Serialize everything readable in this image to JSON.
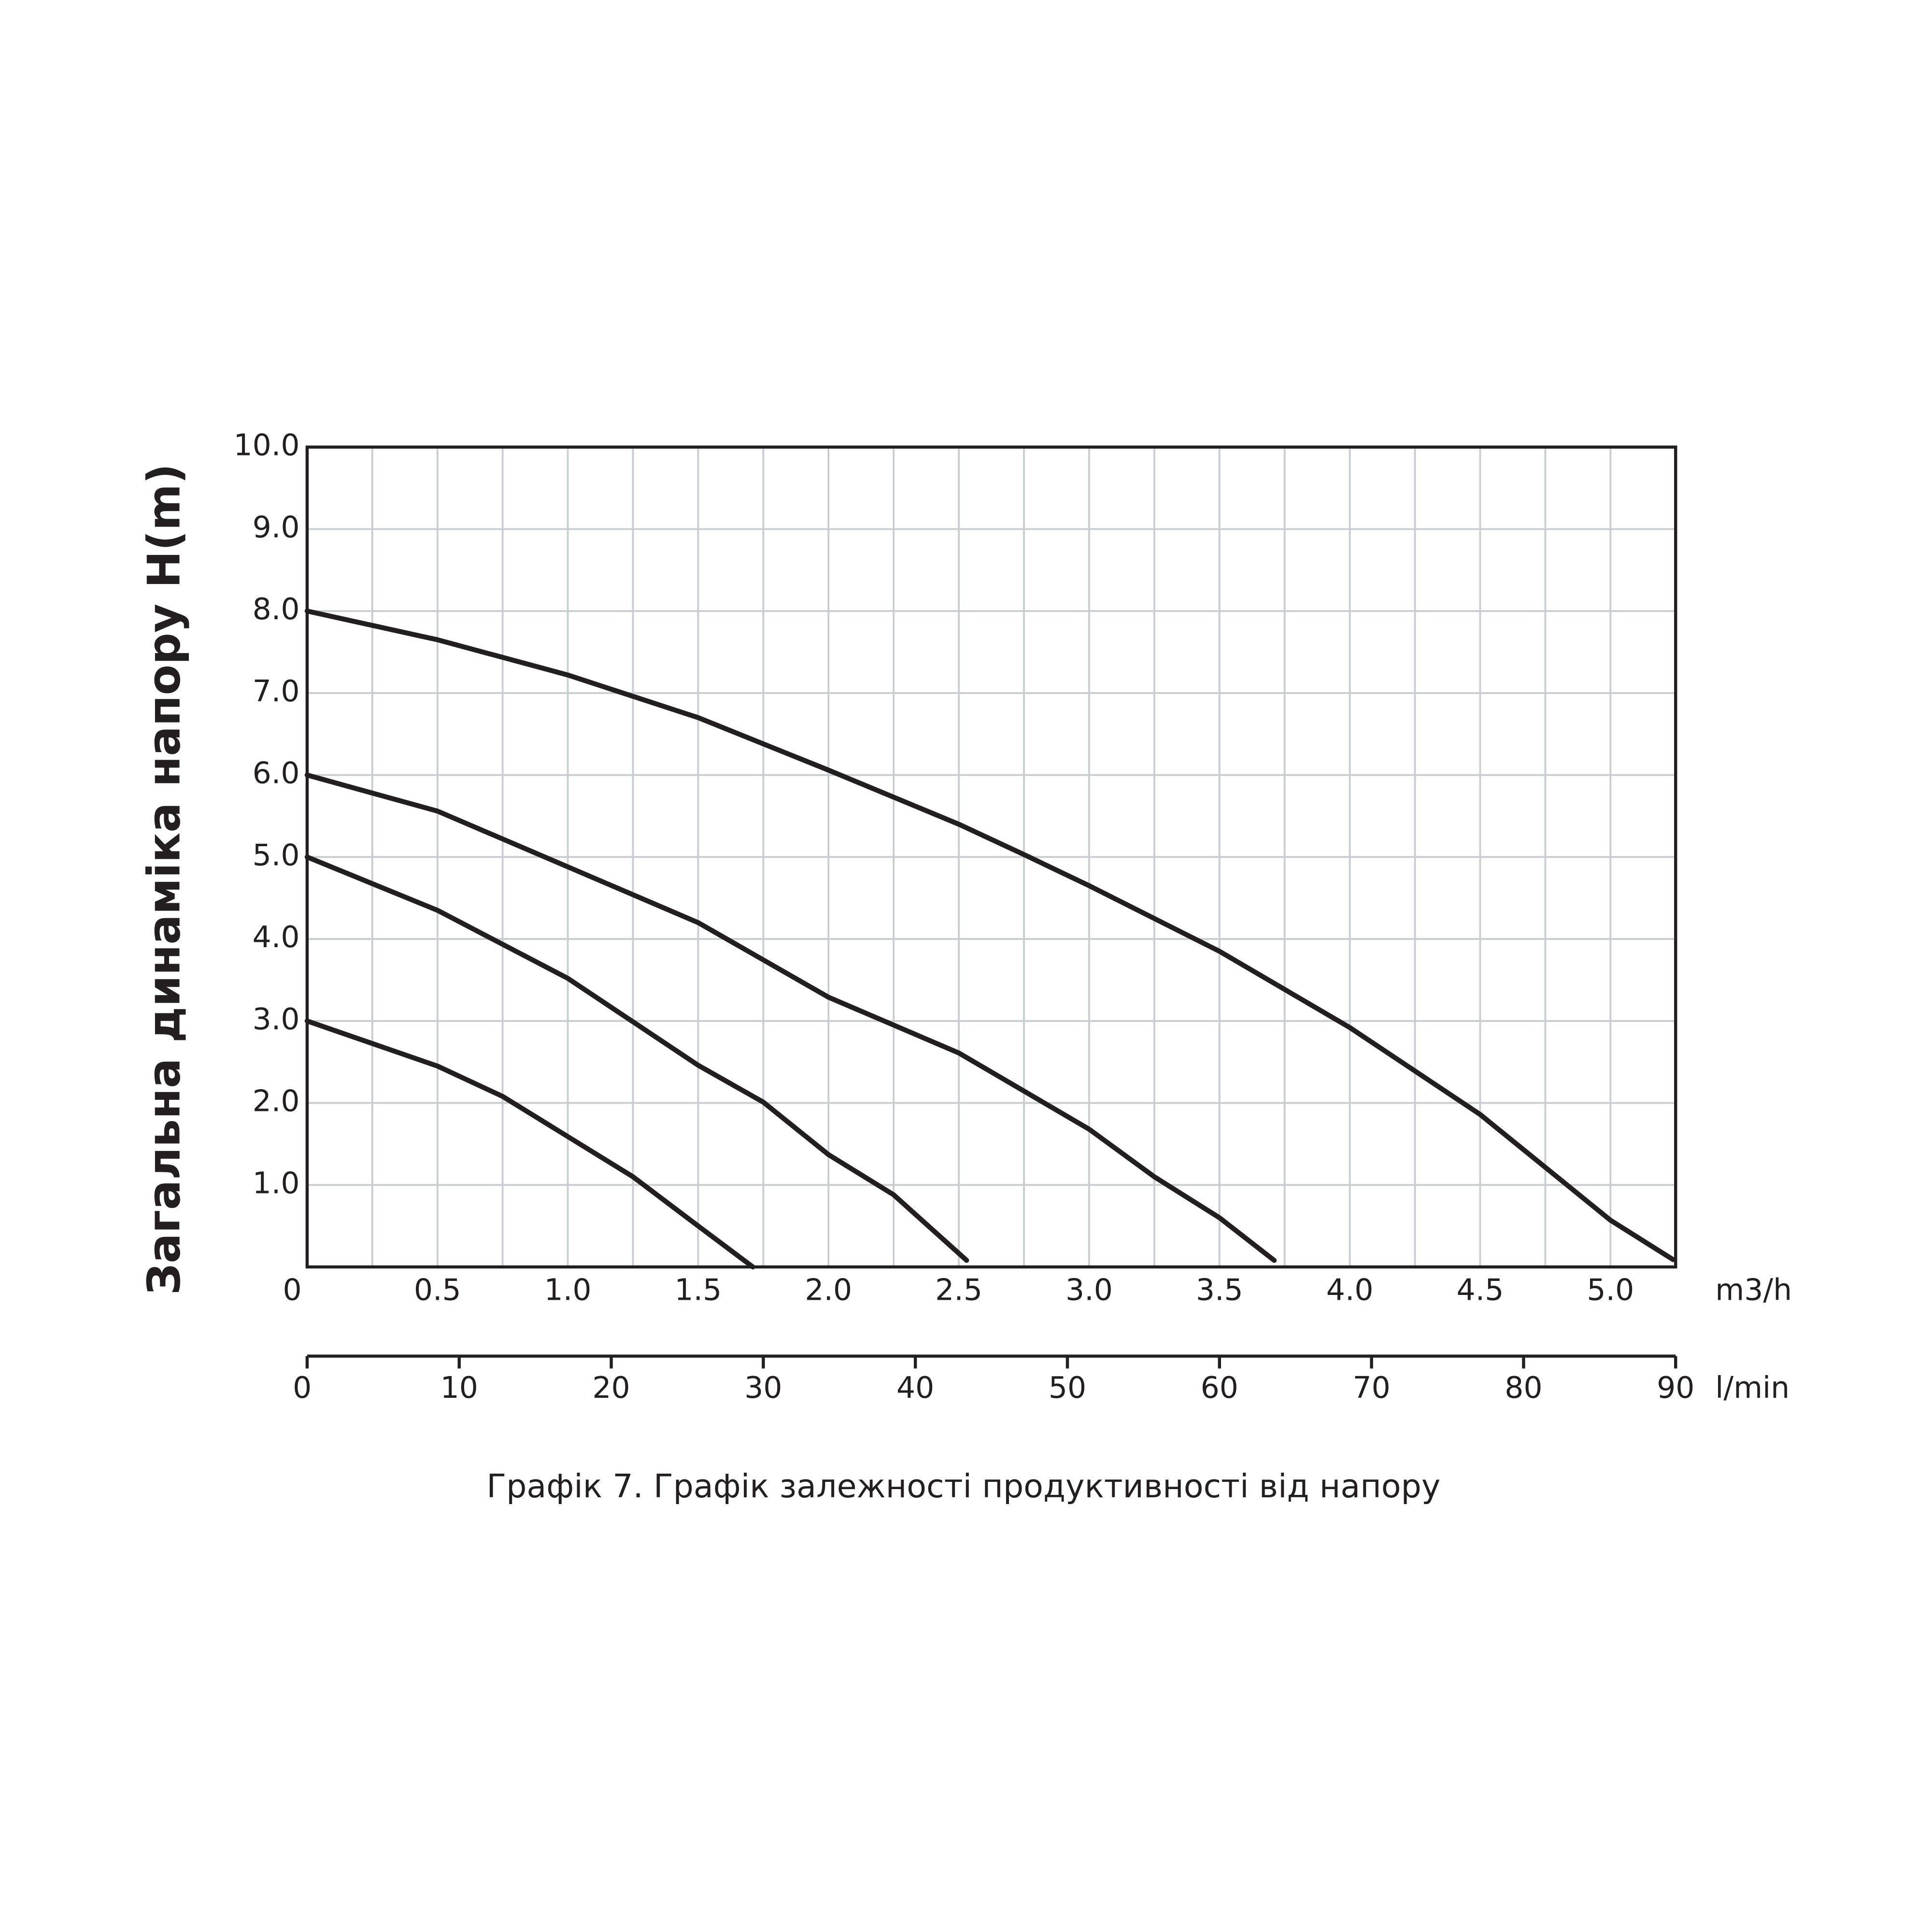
{
  "chart_data": {
    "type": "line",
    "ylabel": "Загальна динаміка напору H(m)",
    "xlabel": "m3/h",
    "x2label": "l/min",
    "caption": "Графік 7. Графік залежності продуктивності від напору",
    "color": "#231f20",
    "grid": true,
    "xlim": [
      0,
      5.25
    ],
    "ylim": [
      0,
      10
    ],
    "x2lim": [
      0,
      90
    ],
    "xticks": [
      0,
      0.5,
      {
        "value": 1,
        "label": "1.0"
      },
      1.5,
      {
        "value": 2,
        "label": "2.0"
      },
      2.5,
      {
        "value": 3,
        "label": "3.0"
      },
      3.5,
      {
        "value": 4,
        "label": "4.0"
      },
      4.5,
      {
        "value": 5,
        "label": "5.0"
      }
    ],
    "xgrid": [
      0.25,
      0.75,
      1.25,
      1.75,
      2.25,
      2.75,
      3.25,
      3.75,
      4.25,
      4.75,
      5.25
    ],
    "x2ticks": [
      0,
      10,
      20,
      30,
      40,
      50,
      60,
      70,
      80,
      90
    ],
    "yticks": [
      {
        "value": 1,
        "label": "1.0"
      },
      {
        "value": 2,
        "label": "2.0"
      },
      {
        "value": 3,
        "label": "3.0"
      },
      {
        "value": 4,
        "label": "4.0"
      },
      {
        "value": 5,
        "label": "5.0"
      },
      {
        "value": 6,
        "label": "6.0"
      },
      {
        "value": 7,
        "label": "7.0"
      },
      {
        "value": 8,
        "label": "8.0"
      },
      {
        "value": 9,
        "label": "9.0"
      },
      {
        "value": 10,
        "label": "10.0"
      }
    ],
    "series": [
      {
        "x": [
          0,
          0.5,
          1,
          1.5,
          2,
          2.5,
          2.75,
          3,
          3.5,
          4,
          4.5,
          5,
          5.24
        ],
        "values": [
          8,
          7.65,
          7.22,
          6.7,
          6.06,
          5.4,
          5.03,
          4.65,
          3.85,
          2.92,
          1.86,
          0.57,
          0.09
        ]
      },
      {
        "x": [
          0,
          0.5,
          1,
          1.5,
          2,
          2.5,
          3,
          3.25,
          3.5,
          3.71
        ],
        "values": [
          6,
          5.56,
          4.88,
          4.2,
          3.29,
          2.61,
          1.68,
          1.1,
          0.6,
          0.08
        ]
      },
      {
        "x": [
          0,
          0.5,
          1,
          1.25,
          1.5,
          1.75,
          2,
          2.25,
          2.53
        ],
        "values": [
          5,
          4.35,
          3.52,
          2.99,
          2.46,
          2.01,
          1.37,
          0.88,
          0.08
        ]
      },
      {
        "x": [
          0,
          0.5,
          0.75,
          1,
          1.25,
          1.5,
          1.71
        ],
        "values": [
          3,
          2.45,
          2.08,
          1.59,
          1.1,
          0.5,
          0
        ]
      }
    ]
  }
}
